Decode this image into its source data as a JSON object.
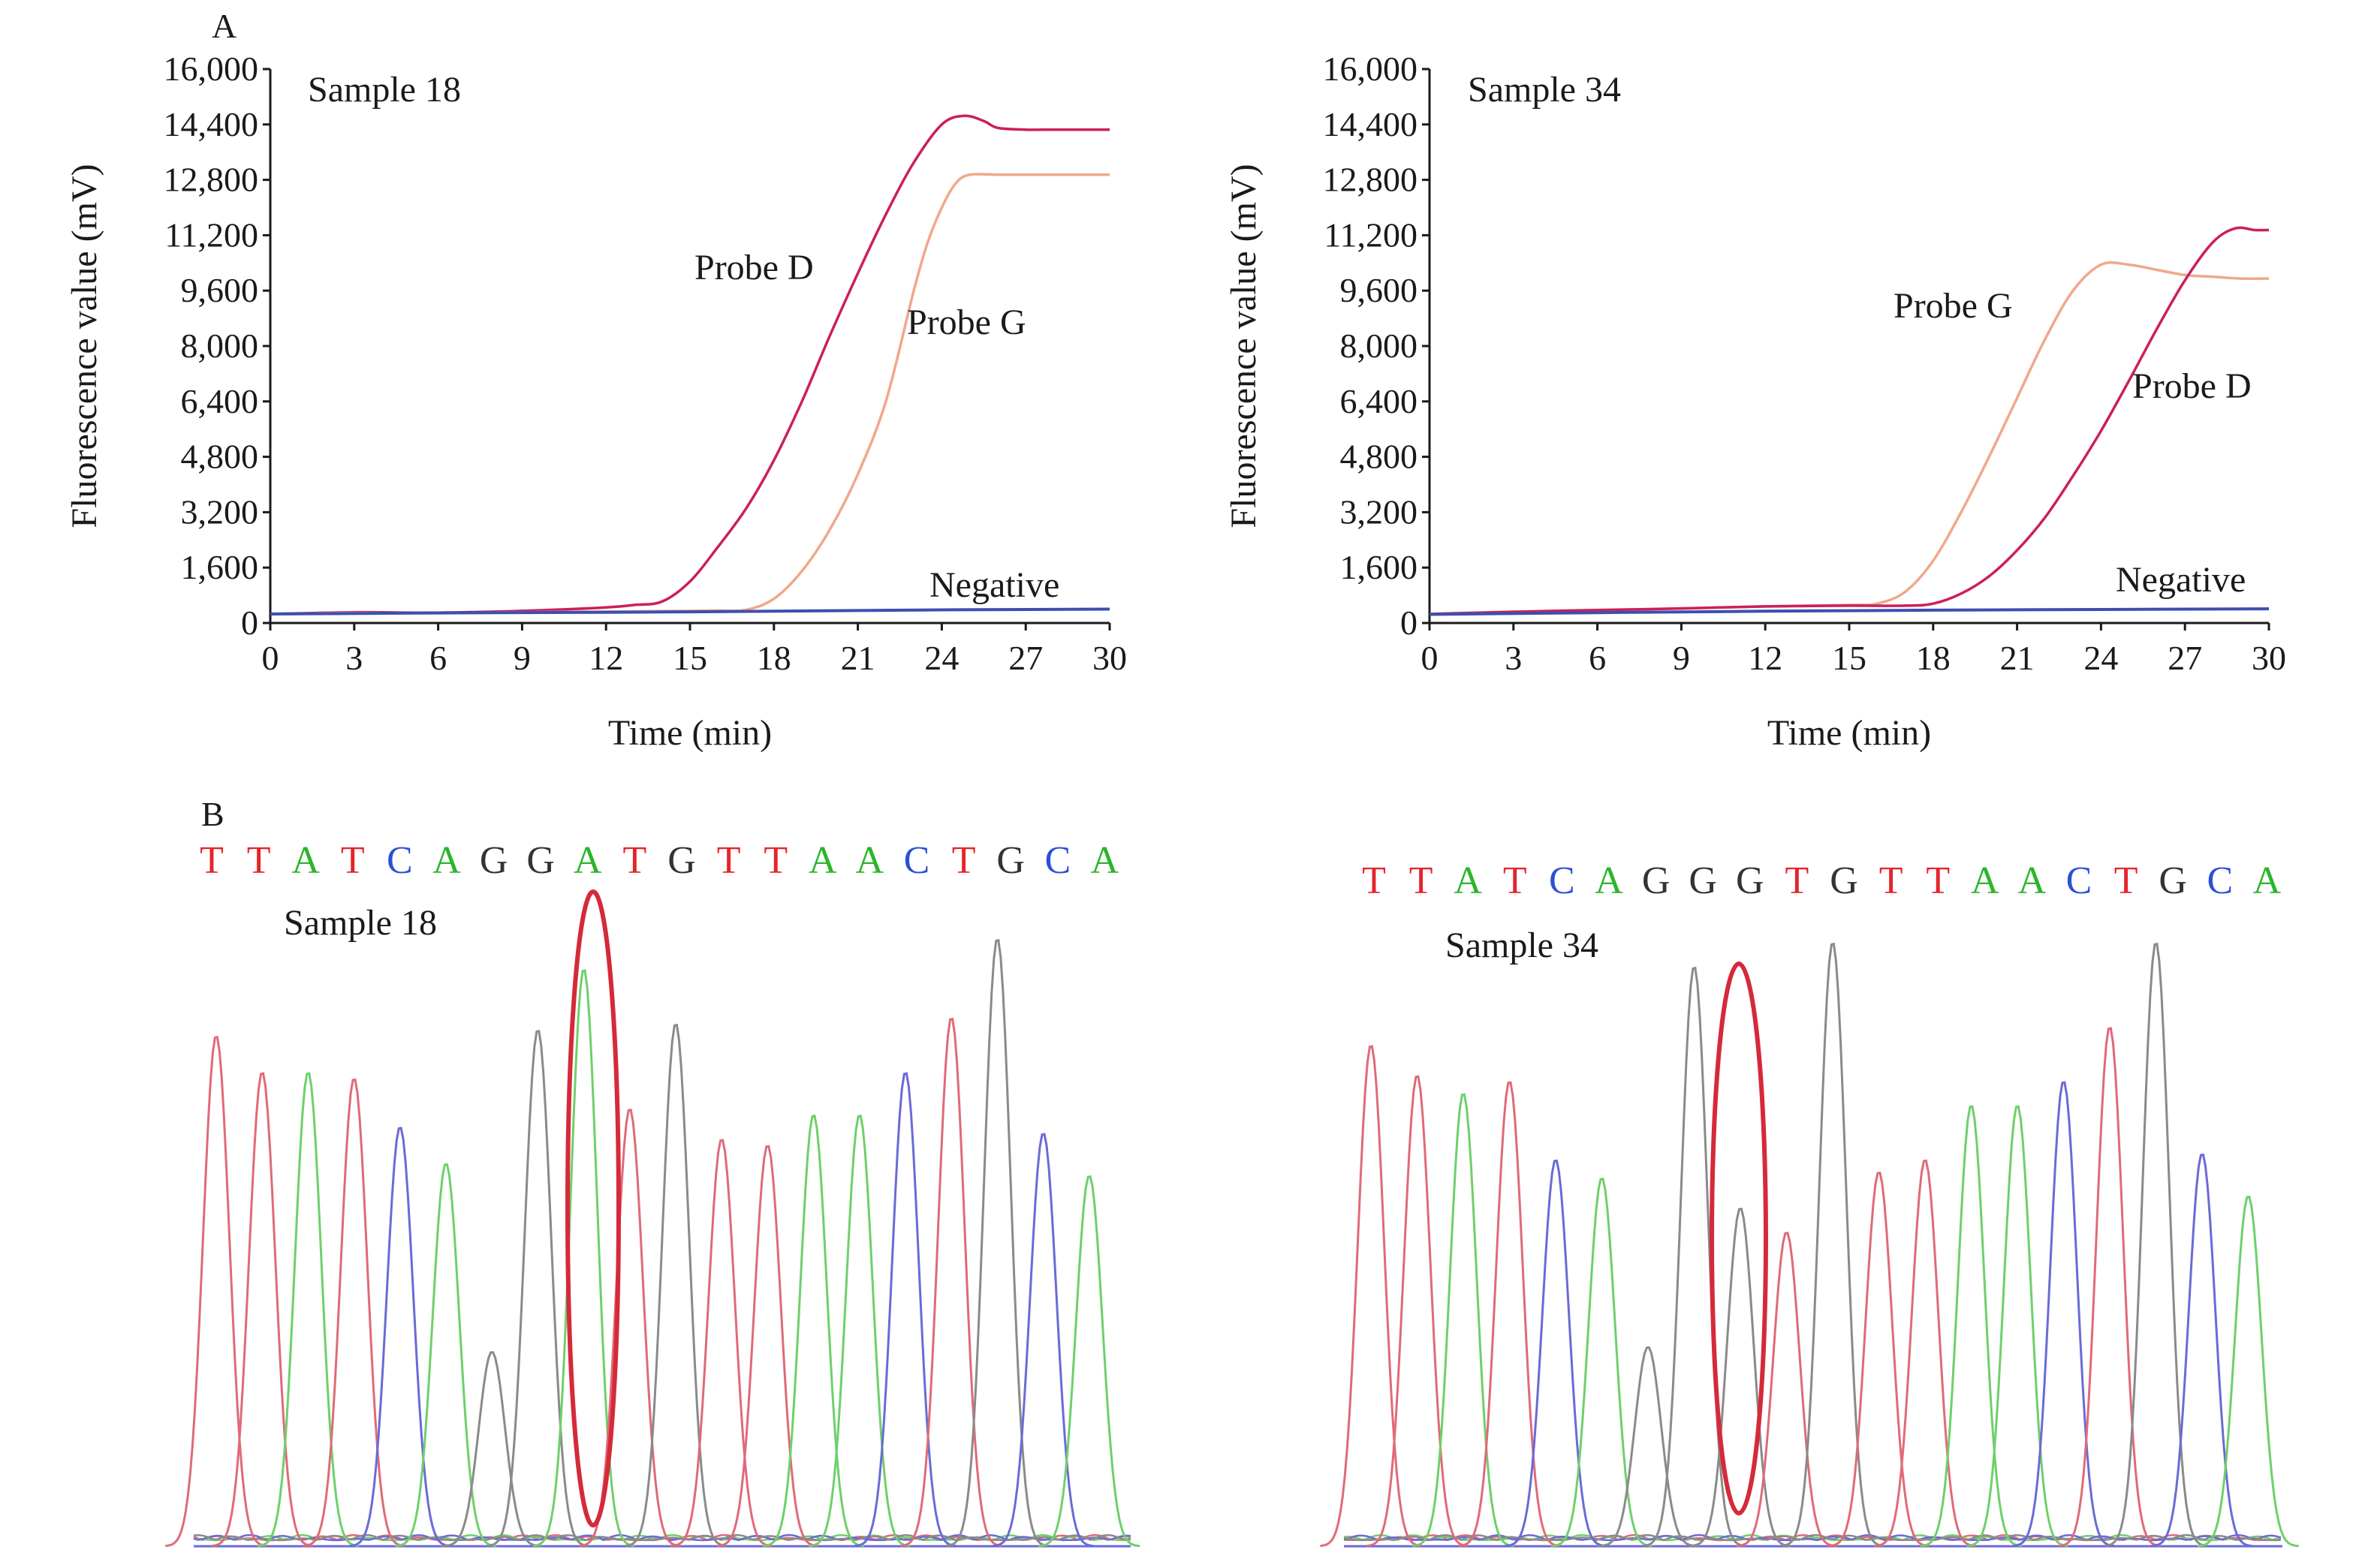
{
  "figure": {
    "panel_labels": [
      "A",
      "B"
    ]
  },
  "colors": {
    "probe_d": "#cc1f5c",
    "probe_g": "#f0a88a",
    "negative": "#3c4fb0",
    "base_T": "#e3242b",
    "base_A": "#2bb52b",
    "base_C": "#2b50d8",
    "base_G": "#333333",
    "highlight": "#d42a3a",
    "trace_T": "#e06a78",
    "trace_A": "#6ed06a",
    "trace_C": "#6a6ad8",
    "trace_G": "#8a8a8a"
  },
  "chart_data": [
    {
      "type": "line",
      "panel": "A",
      "annotation": "Sample 18",
      "xlabel": "Time (min)",
      "ylabel": "Fluorescence value (mV)",
      "xlim": [
        0,
        30
      ],
      "ylim": [
        0,
        16000
      ],
      "xticks": [
        "0",
        "3",
        "6",
        "9",
        "12",
        "15",
        "18",
        "21",
        "24",
        "27",
        "30"
      ],
      "yticks": [
        "0",
        "1,600",
        "3,200",
        "4,800",
        "6,400",
        "8,000",
        "9,600",
        "11,200",
        "12,800",
        "14,400",
        "16,000"
      ],
      "grid": false,
      "series": [
        {
          "name": "Probe D",
          "color_key": "probe_d",
          "x": [
            0,
            3,
            6,
            9,
            12,
            13,
            14,
            15,
            16,
            17,
            18,
            19,
            20,
            21,
            22,
            23,
            24,
            24.8,
            25.5,
            26,
            27,
            28,
            29,
            30
          ],
          "y": [
            260,
            310,
            300,
            350,
            450,
            520,
            620,
            1200,
            2200,
            3300,
            4700,
            6400,
            8300,
            10100,
            11800,
            13300,
            14400,
            14650,
            14500,
            14300,
            14250,
            14250,
            14250,
            14250
          ]
        },
        {
          "name": "Probe G",
          "color_key": "probe_g",
          "x": [
            0,
            3,
            6,
            9,
            12,
            15,
            16,
            17,
            18,
            19,
            20,
            21,
            22,
            23,
            23.5,
            24,
            24.5,
            25,
            26,
            27,
            28,
            29,
            30
          ],
          "y": [
            260,
            290,
            290,
            310,
            330,
            350,
            360,
            380,
            700,
            1500,
            2700,
            4300,
            6400,
            9600,
            11000,
            12000,
            12700,
            12950,
            12950,
            12950,
            12950,
            12950,
            12950
          ]
        },
        {
          "name": "Negative",
          "color_key": "negative",
          "x": [
            0,
            6,
            12,
            18,
            24,
            30
          ],
          "y": [
            260,
            290,
            310,
            340,
            380,
            400
          ]
        }
      ],
      "labels": [
        {
          "text": "Probe D",
          "series": "Probe D"
        },
        {
          "text": "Probe G",
          "series": "Probe G"
        },
        {
          "text": "Negative",
          "series": "Negative"
        }
      ]
    },
    {
      "type": "line",
      "panel": "A",
      "annotation": "Sample 34",
      "xlabel": "Time (min)",
      "ylabel": "Fluorescence value (mV)",
      "xlim": [
        0,
        30
      ],
      "ylim": [
        0,
        16000
      ],
      "xticks": [
        "0",
        "3",
        "6",
        "9",
        "12",
        "15",
        "18",
        "21",
        "24",
        "27",
        "30"
      ],
      "yticks": [
        "0",
        "1,600",
        "3,200",
        "4,800",
        "6,400",
        "8,000",
        "9,600",
        "11,200",
        "12,800",
        "14,400",
        "16,000"
      ],
      "grid": false,
      "series": [
        {
          "name": "Probe G",
          "color_key": "probe_g",
          "x": [
            0,
            3,
            6,
            9,
            12,
            15,
            16,
            17,
            18,
            19,
            20,
            21,
            22,
            23,
            24,
            25,
            26,
            27,
            28,
            29,
            30
          ],
          "y": [
            260,
            330,
            380,
            420,
            480,
            520,
            560,
            900,
            1800,
            3200,
            4800,
            6500,
            8200,
            9600,
            10350,
            10350,
            10200,
            10050,
            10000,
            9950,
            9950
          ]
        },
        {
          "name": "Probe D",
          "color_key": "probe_d",
          "x": [
            0,
            3,
            6,
            9,
            12,
            15,
            17,
            18,
            19,
            20,
            21,
            22,
            23,
            24,
            25,
            26,
            27,
            28,
            28.8,
            29.5,
            30
          ],
          "y": [
            260,
            320,
            370,
            420,
            480,
            500,
            500,
            560,
            850,
            1350,
            2100,
            3050,
            4250,
            5550,
            7000,
            8500,
            9900,
            11000,
            11400,
            11350,
            11350
          ]
        },
        {
          "name": "Negative",
          "color_key": "negative",
          "x": [
            0,
            6,
            12,
            18,
            24,
            30
          ],
          "y": [
            250,
            300,
            340,
            370,
            390,
            410
          ]
        }
      ],
      "labels": [
        {
          "text": "Probe G",
          "series": "Probe G"
        },
        {
          "text": "Probe D",
          "series": "Probe D"
        },
        {
          "text": "Negative",
          "series": "Negative"
        }
      ]
    },
    {
      "type": "line",
      "panel": "B",
      "annotation": "Sample 18",
      "sequence": [
        "T",
        "T",
        "A",
        "T",
        "C",
        "A",
        "G",
        "G",
        "A",
        "T",
        "G",
        "T",
        "T",
        "A",
        "A",
        "C",
        "T",
        "G",
        "C",
        "A"
      ],
      "peak_heights": [
        0.84,
        0.78,
        0.78,
        0.77,
        0.69,
        0.63,
        0.32,
        0.85,
        0.95,
        0.72,
        0.86,
        0.67,
        0.66,
        0.71,
        0.71,
        0.78,
        0.87,
        1.0,
        0.68,
        0.61
      ],
      "highlight_index": 8
    },
    {
      "type": "line",
      "panel": "B",
      "annotation": "Sample 34",
      "sequence": [
        "T",
        "T",
        "A",
        "T",
        "C",
        "A",
        "G",
        "G",
        "G",
        "T",
        "G",
        "T",
        "T",
        "A",
        "A",
        "C",
        "T",
        "G",
        "C",
        "A"
      ],
      "peak_heights": [
        0.83,
        0.78,
        0.75,
        0.77,
        0.64,
        0.61,
        0.33,
        0.96,
        0.56,
        0.52,
        1.0,
        0.62,
        0.64,
        0.73,
        0.73,
        0.77,
        0.86,
        1.0,
        0.65,
        0.58
      ],
      "highlight_index": 8
    }
  ]
}
